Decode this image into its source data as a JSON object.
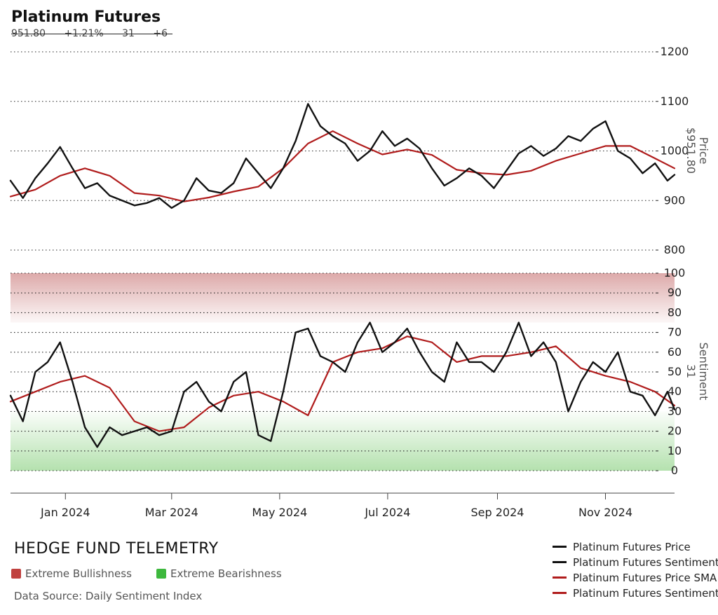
{
  "header": {
    "title": "Platinum Futures",
    "price": "951.80",
    "change_pct": "+1.21%",
    "sentiment": "31",
    "sentiment_change": "+6"
  },
  "axis_titles": {
    "price": "Price",
    "price_value": "$951.80",
    "sentiment": "Sentiment",
    "sentiment_value": "31"
  },
  "footer": {
    "brand": "HEDGE FUND TELEMETRY",
    "extreme_bullish": "Extreme Bullishness",
    "extreme_bearish": "Extreme Bearishness",
    "source": "Data Source: Daily Sentiment Index"
  },
  "colors": {
    "price_line": "#111111",
    "sentiment_line": "#111111",
    "price_sma": "#b01c1c",
    "sentiment_sma": "#b01c1c",
    "bullish_zone": "#d9a0a0",
    "bearish_zone": "#a7dca0",
    "bullish_swatch": "#c0413f",
    "bearish_swatch": "#3db83d"
  },
  "chart_data": {
    "type": "line",
    "x_axis": {
      "tick_labels": [
        "Jan 2024",
        "Mar 2024",
        "May 2024",
        "Jul 2024",
        "Sep 2024",
        "Nov 2024"
      ],
      "range": [
        "2023-12-01",
        "2024-12-10"
      ]
    },
    "price_panel": {
      "ylim": [
        800,
        1200
      ],
      "ticks": [
        800,
        900,
        1000,
        1100,
        1200
      ],
      "grid": true,
      "series": [
        {
          "name": "Platinum Futures Price",
          "x": [
            "2023-12-01",
            "2023-12-08",
            "2023-12-15",
            "2023-12-22",
            "2023-12-29",
            "2024-01-05",
            "2024-01-12",
            "2024-01-19",
            "2024-01-26",
            "2024-02-02",
            "2024-02-09",
            "2024-02-16",
            "2024-02-23",
            "2024-03-01",
            "2024-03-08",
            "2024-03-15",
            "2024-03-22",
            "2024-03-29",
            "2024-04-05",
            "2024-04-12",
            "2024-04-19",
            "2024-04-26",
            "2024-05-03",
            "2024-05-10",
            "2024-05-17",
            "2024-05-24",
            "2024-05-31",
            "2024-06-07",
            "2024-06-14",
            "2024-06-21",
            "2024-06-28",
            "2024-07-05",
            "2024-07-12",
            "2024-07-19",
            "2024-07-26",
            "2024-08-02",
            "2024-08-09",
            "2024-08-16",
            "2024-08-23",
            "2024-08-30",
            "2024-09-06",
            "2024-09-13",
            "2024-09-20",
            "2024-09-27",
            "2024-10-04",
            "2024-10-11",
            "2024-10-18",
            "2024-10-25",
            "2024-11-01",
            "2024-11-08",
            "2024-11-15",
            "2024-11-22",
            "2024-11-29",
            "2024-12-06",
            "2024-12-10"
          ],
          "y": [
            940,
            905,
            945,
            975,
            1008,
            965,
            925,
            935,
            910,
            900,
            890,
            895,
            905,
            885,
            900,
            945,
            920,
            915,
            935,
            985,
            955,
            925,
            965,
            1020,
            1095,
            1050,
            1030,
            1015,
            980,
            1000,
            1040,
            1010,
            1025,
            1005,
            965,
            930,
            945,
            965,
            950,
            925,
            960,
            995,
            1010,
            990,
            1005,
            1030,
            1020,
            1045,
            1060,
            1000,
            985,
            955,
            975,
            940,
            952
          ]
        },
        {
          "name": "Platinum Futures Price SMA",
          "x": [
            "2023-12-01",
            "2023-12-15",
            "2023-12-29",
            "2024-01-12",
            "2024-01-26",
            "2024-02-09",
            "2024-02-23",
            "2024-03-08",
            "2024-03-22",
            "2024-04-05",
            "2024-04-19",
            "2024-05-03",
            "2024-05-17",
            "2024-05-31",
            "2024-06-14",
            "2024-06-28",
            "2024-07-12",
            "2024-07-26",
            "2024-08-09",
            "2024-08-23",
            "2024-09-06",
            "2024-09-20",
            "2024-10-04",
            "2024-10-18",
            "2024-11-01",
            "2024-11-15",
            "2024-11-29",
            "2024-12-10"
          ],
          "y": [
            908,
            922,
            950,
            965,
            950,
            915,
            910,
            898,
            906,
            918,
            928,
            965,
            1015,
            1040,
            1015,
            993,
            1003,
            992,
            962,
            955,
            952,
            960,
            980,
            995,
            1010,
            1010,
            985,
            965
          ]
        }
      ]
    },
    "sentiment_panel": {
      "ylim": [
        0,
        100
      ],
      "ticks": [
        0,
        10,
        20,
        30,
        40,
        50,
        60,
        70,
        80,
        90,
        100
      ],
      "grid": true,
      "zones": [
        {
          "label": "Extreme Bullishness",
          "range": [
            75,
            100
          ]
        },
        {
          "label": "Extreme Bearishness",
          "range": [
            0,
            30
          ]
        }
      ],
      "series": [
        {
          "name": "Platinum Futures Sentiment",
          "x": [
            "2023-12-01",
            "2023-12-08",
            "2023-12-15",
            "2023-12-22",
            "2023-12-29",
            "2024-01-05",
            "2024-01-12",
            "2024-01-19",
            "2024-01-26",
            "2024-02-02",
            "2024-02-09",
            "2024-02-16",
            "2024-02-23",
            "2024-03-01",
            "2024-03-08",
            "2024-03-15",
            "2024-03-22",
            "2024-03-29",
            "2024-04-05",
            "2024-04-12",
            "2024-04-19",
            "2024-04-26",
            "2024-05-03",
            "2024-05-10",
            "2024-05-17",
            "2024-05-24",
            "2024-05-31",
            "2024-06-07",
            "2024-06-14",
            "2024-06-21",
            "2024-06-28",
            "2024-07-05",
            "2024-07-12",
            "2024-07-19",
            "2024-07-26",
            "2024-08-02",
            "2024-08-09",
            "2024-08-16",
            "2024-08-23",
            "2024-08-30",
            "2024-09-06",
            "2024-09-13",
            "2024-09-20",
            "2024-09-27",
            "2024-10-04",
            "2024-10-11",
            "2024-10-18",
            "2024-10-25",
            "2024-11-01",
            "2024-11-08",
            "2024-11-15",
            "2024-11-22",
            "2024-11-29",
            "2024-12-06",
            "2024-12-10"
          ],
          "y": [
            38,
            25,
            50,
            55,
            65,
            45,
            22,
            12,
            22,
            18,
            20,
            22,
            18,
            20,
            40,
            45,
            35,
            30,
            45,
            50,
            18,
            15,
            40,
            70,
            72,
            58,
            55,
            50,
            65,
            75,
            60,
            65,
            72,
            60,
            50,
            45,
            65,
            55,
            55,
            50,
            60,
            75,
            58,
            65,
            55,
            30,
            45,
            55,
            50,
            60,
            40,
            38,
            28,
            40,
            31
          ]
        },
        {
          "name": "Platinum Futures Sentiment SMA",
          "x": [
            "2023-12-01",
            "2023-12-15",
            "2023-12-29",
            "2024-01-12",
            "2024-01-26",
            "2024-02-09",
            "2024-02-23",
            "2024-03-08",
            "2024-03-22",
            "2024-04-05",
            "2024-04-19",
            "2024-05-03",
            "2024-05-17",
            "2024-05-31",
            "2024-06-14",
            "2024-06-28",
            "2024-07-12",
            "2024-07-26",
            "2024-08-09",
            "2024-08-23",
            "2024-09-06",
            "2024-09-20",
            "2024-10-04",
            "2024-10-18",
            "2024-11-01",
            "2024-11-15",
            "2024-11-29",
            "2024-12-10"
          ],
          "y": [
            35,
            40,
            45,
            48,
            42,
            25,
            20,
            22,
            32,
            38,
            40,
            35,
            28,
            55,
            60,
            62,
            68,
            65,
            55,
            58,
            58,
            60,
            63,
            52,
            48,
            45,
            40,
            33
          ]
        }
      ]
    },
    "legend": {
      "placement": "bottom-right",
      "entries": [
        "Platinum Futures Price",
        "Platinum Futures Sentiment",
        "Platinum Futures Price SMA",
        "Platinum Futures Sentiment SMA"
      ]
    }
  }
}
